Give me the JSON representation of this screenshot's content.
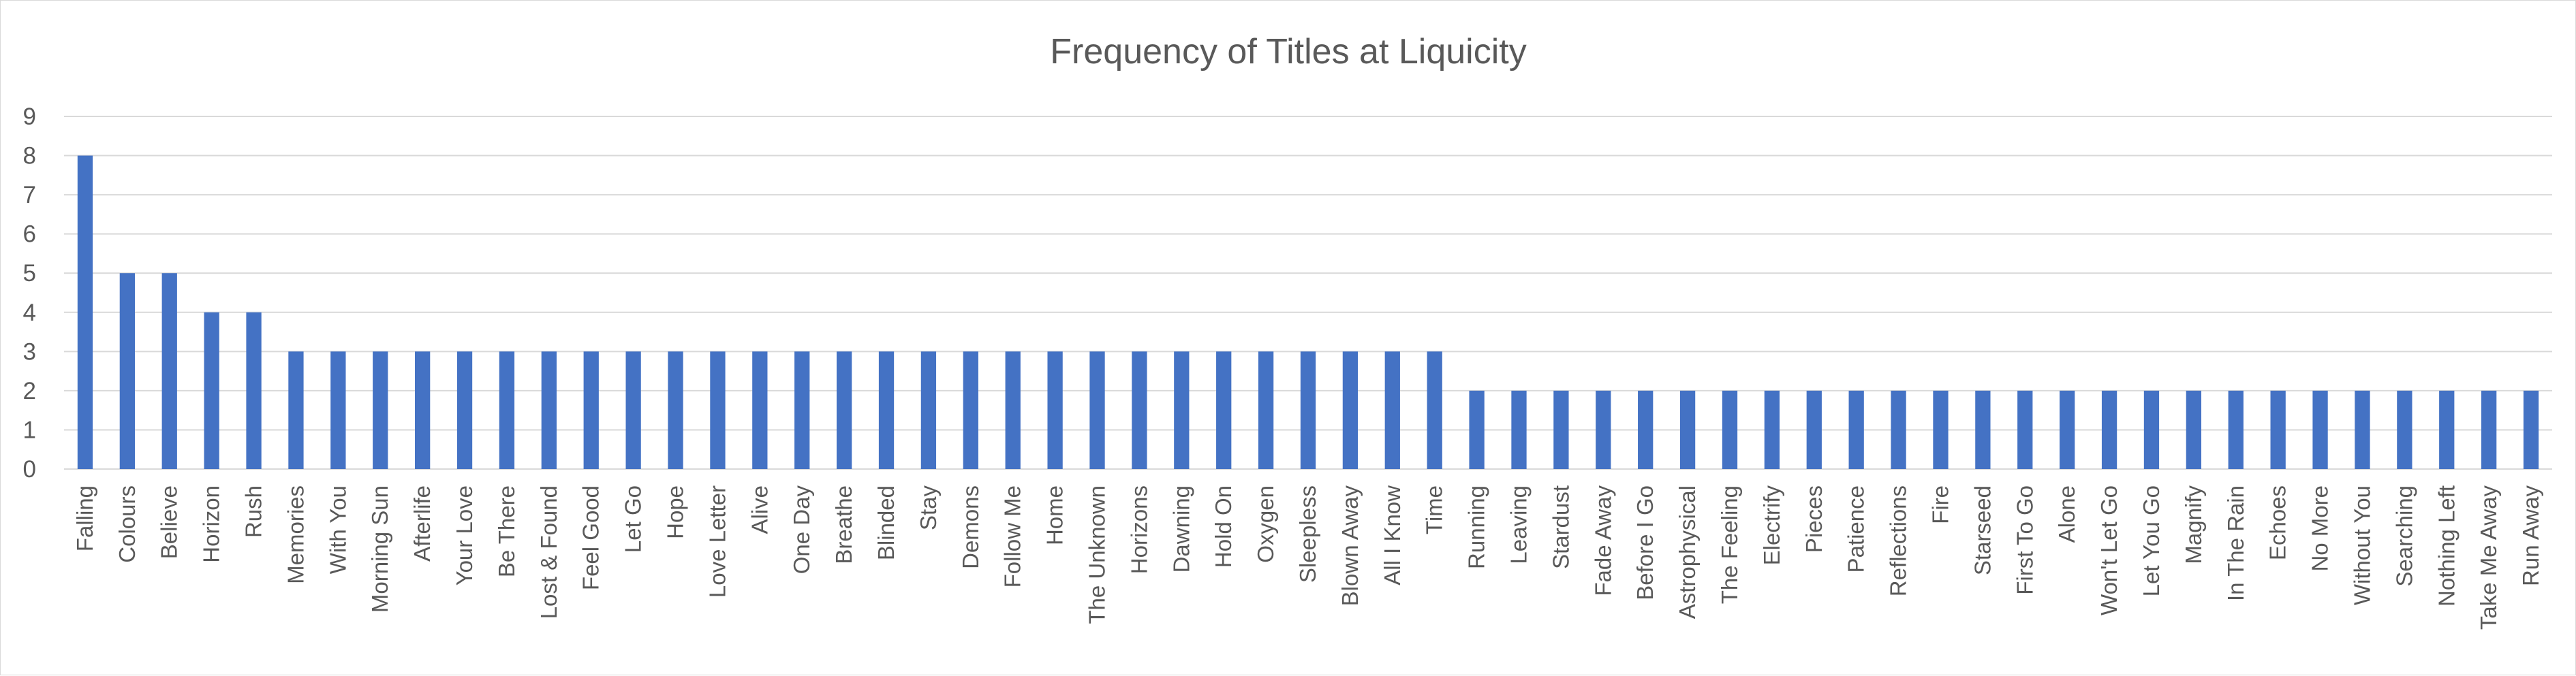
{
  "chart_data": {
    "type": "bar",
    "title": "Frequency of Titles at Liquicity",
    "xlabel": "",
    "ylabel": "",
    "ylim": [
      0,
      9
    ],
    "yticks": [
      0,
      1,
      2,
      3,
      4,
      5,
      6,
      7,
      8,
      9
    ],
    "grid": true,
    "legend": "none",
    "bar_color": "#4472C4",
    "categories": [
      "Falling",
      "Colours",
      "Believe",
      "Horizon",
      "Rush",
      "Memories",
      "With You",
      "Morning Sun",
      "Afterlife",
      "Your Love",
      "Be There",
      "Lost & Found",
      "Feel Good",
      "Let Go",
      "Hope",
      "Love Letter",
      "Alive",
      "One Day",
      "Breathe",
      "Blinded",
      "Stay",
      "Demons",
      "Follow Me",
      "Home",
      "The Unknown",
      "Horizons",
      "Dawning",
      "Hold On",
      "Oxygen",
      "Sleepless",
      "Blown Away",
      "All I Know",
      "Time",
      "Running",
      "Leaving",
      "Stardust",
      "Fade Away",
      "Before I Go",
      "Astrophysical",
      "The Feeling",
      "Electrify",
      "Pieces",
      "Patience",
      "Reflections",
      "Fire",
      "Starseed",
      "First To Go",
      "Alone",
      "Won't Let Go",
      "Let You Go",
      "Magnify",
      "In The Rain",
      "Echoes",
      "No More",
      "Without You",
      "Searching",
      "Nothing Left",
      "Take Me Away",
      "Run Away"
    ],
    "values": [
      8,
      5,
      5,
      4,
      4,
      3,
      3,
      3,
      3,
      3,
      3,
      3,
      3,
      3,
      3,
      3,
      3,
      3,
      3,
      3,
      3,
      3,
      3,
      3,
      3,
      3,
      3,
      3,
      3,
      3,
      3,
      3,
      3,
      2,
      2,
      2,
      2,
      2,
      2,
      2,
      2,
      2,
      2,
      2,
      2,
      2,
      2,
      2,
      2,
      2,
      2,
      2,
      2,
      2,
      2,
      2,
      2,
      2,
      2
    ]
  }
}
